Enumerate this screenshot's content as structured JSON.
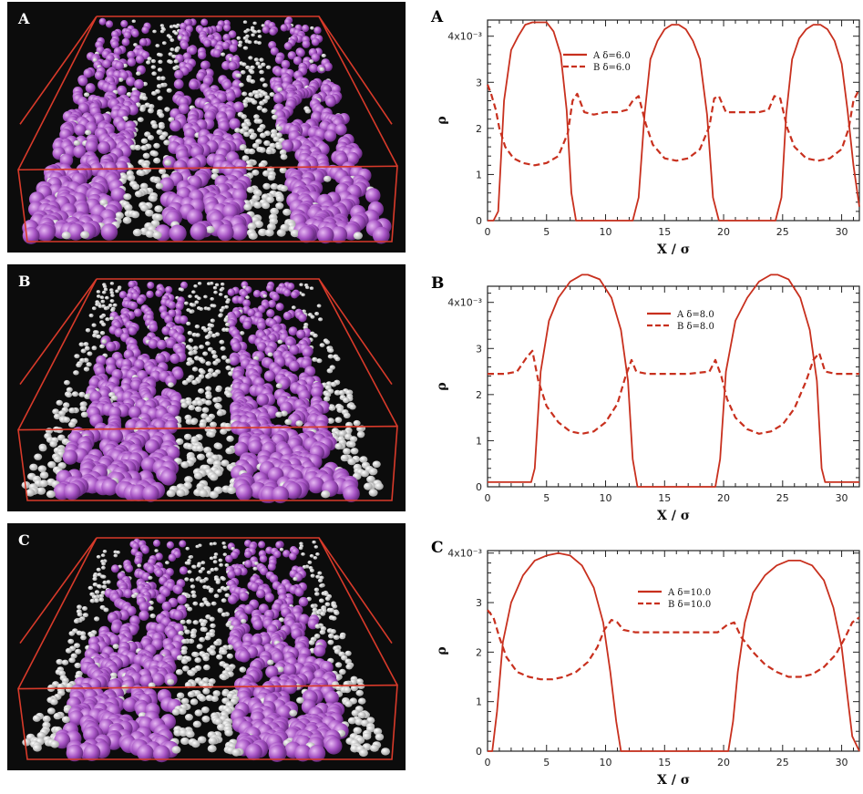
{
  "colors": {
    "curve": "#c8301e",
    "particle_a": "#a653c4",
    "particle_b": "#f2f2f2",
    "box": "#d83a2a",
    "sim_bg": "#0c0c0c"
  },
  "simulations": [
    {
      "label": "A",
      "stripes": 3
    },
    {
      "label": "B",
      "stripes": 2
    },
    {
      "label": "C",
      "stripes": 2
    }
  ],
  "chart_data": [
    {
      "type": "line",
      "panel_label": "A",
      "xlabel": "X / σ",
      "ylabel": "ρ",
      "xlim": [
        0,
        31.5
      ],
      "ylim": [
        0,
        4.35
      ],
      "x_ticks": [
        0,
        5,
        10,
        15,
        20,
        25,
        30
      ],
      "y_ticks": [
        0,
        1,
        2,
        3,
        4
      ],
      "y_tick_labels": [
        "0",
        "1",
        "2",
        "3",
        "4x10⁻³"
      ],
      "legend": [
        {
          "label": "A  δ=6.0",
          "style": "solid"
        },
        {
          "label": "B  δ=6.0",
          "style": "dashed"
        }
      ],
      "series": [
        {
          "name": "A δ=6.0",
          "style": "solid",
          "x": [
            0,
            0.5,
            0.9,
            1.4,
            2.0,
            2.6,
            3.2,
            3.8,
            4.4,
            5.0,
            5.6,
            6.2,
            6.7,
            7.1,
            7.5,
            12.3,
            12.8,
            13.3,
            13.8,
            14.4,
            15.0,
            15.6,
            16.2,
            16.8,
            17.4,
            18.0,
            18.6,
            19.1,
            19.6,
            24.4,
            24.9,
            25.3,
            25.8,
            26.4,
            27.0,
            27.6,
            28.2,
            28.8,
            29.4,
            30.0,
            30.5,
            31.0,
            31.5
          ],
          "y": [
            0,
            0,
            0.2,
            2.6,
            3.7,
            4.0,
            4.25,
            4.3,
            4.3,
            4.3,
            4.1,
            3.6,
            2.4,
            0.6,
            0,
            0,
            0.5,
            2.3,
            3.5,
            3.9,
            4.15,
            4.25,
            4.25,
            4.15,
            3.9,
            3.5,
            2.3,
            0.5,
            0,
            0,
            0.5,
            2.3,
            3.5,
            3.95,
            4.15,
            4.25,
            4.25,
            4.15,
            3.9,
            3.4,
            2.4,
            1.2,
            0.3
          ]
        },
        {
          "name": "B δ=6.0",
          "style": "dashed",
          "x": [
            0,
            0.3,
            0.7,
            1.0,
            1.5,
            2.2,
            3.0,
            4.0,
            5.0,
            6.0,
            6.8,
            7.2,
            7.6,
            8.2,
            9.0,
            10.0,
            11.0,
            11.8,
            12.3,
            12.8,
            13.4,
            14.0,
            15.0,
            16.0,
            17.0,
            18.0,
            18.8,
            19.2,
            19.6,
            20.2,
            21.0,
            22.0,
            23.0,
            23.8,
            24.3,
            24.8,
            25.4,
            26.0,
            27.0,
            28.0,
            29.0,
            30.0,
            30.6,
            31.0,
            31.5
          ],
          "y": [
            2.95,
            2.75,
            2.4,
            2.0,
            1.6,
            1.35,
            1.25,
            1.2,
            1.25,
            1.4,
            1.9,
            2.6,
            2.75,
            2.35,
            2.3,
            2.35,
            2.35,
            2.4,
            2.6,
            2.7,
            2.1,
            1.65,
            1.35,
            1.3,
            1.35,
            1.55,
            2.05,
            2.65,
            2.7,
            2.35,
            2.35,
            2.35,
            2.35,
            2.4,
            2.7,
            2.65,
            2.0,
            1.6,
            1.35,
            1.3,
            1.35,
            1.55,
            2.0,
            2.6,
            2.85
          ]
        }
      ]
    },
    {
      "type": "line",
      "panel_label": "B",
      "xlabel": "X / σ",
      "ylabel": "ρ",
      "xlim": [
        0,
        31.5
      ],
      "ylim": [
        0,
        4.35
      ],
      "x_ticks": [
        0,
        5,
        10,
        15,
        20,
        25,
        30
      ],
      "y_ticks": [
        0,
        1,
        2,
        3,
        4
      ],
      "y_tick_labels": [
        "0",
        "1",
        "2",
        "3",
        "4x10⁻³"
      ],
      "legend": [
        {
          "label": "A  δ=8.0",
          "style": "solid"
        },
        {
          "label": "B  δ=8.0",
          "style": "dashed"
        }
      ],
      "series": [
        {
          "name": "A δ=8.0",
          "style": "solid",
          "x": [
            0,
            3.7,
            4.0,
            4.5,
            5.2,
            6.0,
            7.0,
            8.0,
            8.5,
            9.5,
            10.5,
            11.3,
            11.9,
            12.3,
            12.7,
            19.3,
            19.7,
            20.2,
            21.0,
            22.0,
            23.0,
            24.0,
            24.6,
            25.5,
            26.5,
            27.3,
            27.9,
            28.3,
            28.6,
            31.5
          ],
          "y": [
            0.1,
            0.1,
            0.4,
            2.5,
            3.6,
            4.1,
            4.45,
            4.6,
            4.6,
            4.5,
            4.1,
            3.4,
            2.3,
            0.6,
            0,
            0,
            0.6,
            2.5,
            3.6,
            4.1,
            4.45,
            4.6,
            4.6,
            4.5,
            4.1,
            3.4,
            2.3,
            0.4,
            0.1,
            0.1
          ]
        },
        {
          "name": "B δ=8.0",
          "style": "dashed",
          "x": [
            0,
            1.5,
            2.5,
            3.3,
            3.8,
            4.3,
            5.0,
            6.0,
            7.0,
            8.0,
            9.0,
            10.0,
            11.0,
            11.7,
            12.2,
            12.6,
            13.5,
            15.0,
            17.0,
            18.8,
            19.3,
            19.8,
            20.3,
            21.0,
            22.0,
            23.0,
            24.0,
            25.0,
            26.0,
            27.0,
            27.6,
            28.1,
            28.6,
            29.5,
            31.5
          ],
          "y": [
            2.45,
            2.45,
            2.5,
            2.8,
            2.95,
            2.3,
            1.75,
            1.4,
            1.2,
            1.15,
            1.2,
            1.4,
            1.8,
            2.4,
            2.75,
            2.5,
            2.45,
            2.45,
            2.45,
            2.5,
            2.75,
            2.4,
            1.9,
            1.5,
            1.25,
            1.15,
            1.2,
            1.35,
            1.7,
            2.3,
            2.75,
            2.9,
            2.5,
            2.45,
            2.45
          ]
        }
      ]
    },
    {
      "type": "line",
      "panel_label": "C",
      "xlabel": "X / σ",
      "ylabel": "ρ",
      "xlim": [
        0,
        31.5
      ],
      "ylim": [
        0,
        4.05
      ],
      "x_ticks": [
        0,
        5,
        10,
        15,
        20,
        25,
        30
      ],
      "y_ticks": [
        0,
        1,
        2,
        3,
        4
      ],
      "y_tick_labels": [
        "0",
        "1",
        "2",
        "3",
        "4x10⁻³"
      ],
      "legend": [
        {
          "label": "A  δ=10.0",
          "style": "solid"
        },
        {
          "label": "B  δ=10.0",
          "style": "dashed"
        }
      ],
      "series": [
        {
          "name": "A δ=10.0",
          "style": "solid",
          "x": [
            0,
            0.4,
            0.8,
            1.3,
            2.0,
            3.0,
            4.0,
            5.0,
            6.0,
            7.0,
            8.0,
            9.0,
            9.8,
            10.4,
            10.9,
            11.3,
            20.4,
            20.8,
            21.2,
            21.8,
            22.5,
            23.5,
            24.5,
            25.5,
            26.5,
            27.5,
            28.5,
            29.3,
            30.0,
            30.5,
            30.9,
            31.5
          ],
          "y": [
            0,
            0,
            0.8,
            2.2,
            3.0,
            3.55,
            3.85,
            3.95,
            4.0,
            3.95,
            3.75,
            3.3,
            2.6,
            1.6,
            0.6,
            0,
            0,
            0.6,
            1.6,
            2.6,
            3.2,
            3.55,
            3.75,
            3.85,
            3.85,
            3.75,
            3.45,
            2.9,
            2.1,
            1.1,
            0.3,
            0
          ]
        },
        {
          "name": "B δ=10.0",
          "style": "dashed",
          "x": [
            0,
            0.5,
            1.0,
            1.6,
            2.5,
            3.5,
            4.5,
            5.5,
            6.5,
            7.5,
            8.5,
            9.3,
            9.9,
            10.5,
            11.0,
            11.5,
            12.5,
            14.0,
            16.0,
            18.0,
            19.5,
            20.3,
            20.9,
            21.5,
            22.5,
            23.5,
            24.5,
            25.5,
            26.5,
            27.5,
            28.5,
            29.5,
            30.3,
            30.9,
            31.5
          ],
          "y": [
            2.85,
            2.7,
            2.3,
            1.9,
            1.6,
            1.5,
            1.45,
            1.45,
            1.5,
            1.6,
            1.8,
            2.1,
            2.45,
            2.65,
            2.6,
            2.45,
            2.4,
            2.4,
            2.4,
            2.4,
            2.4,
            2.55,
            2.6,
            2.3,
            2.0,
            1.75,
            1.6,
            1.5,
            1.5,
            1.55,
            1.7,
            1.95,
            2.3,
            2.6,
            2.7
          ]
        }
      ]
    }
  ]
}
